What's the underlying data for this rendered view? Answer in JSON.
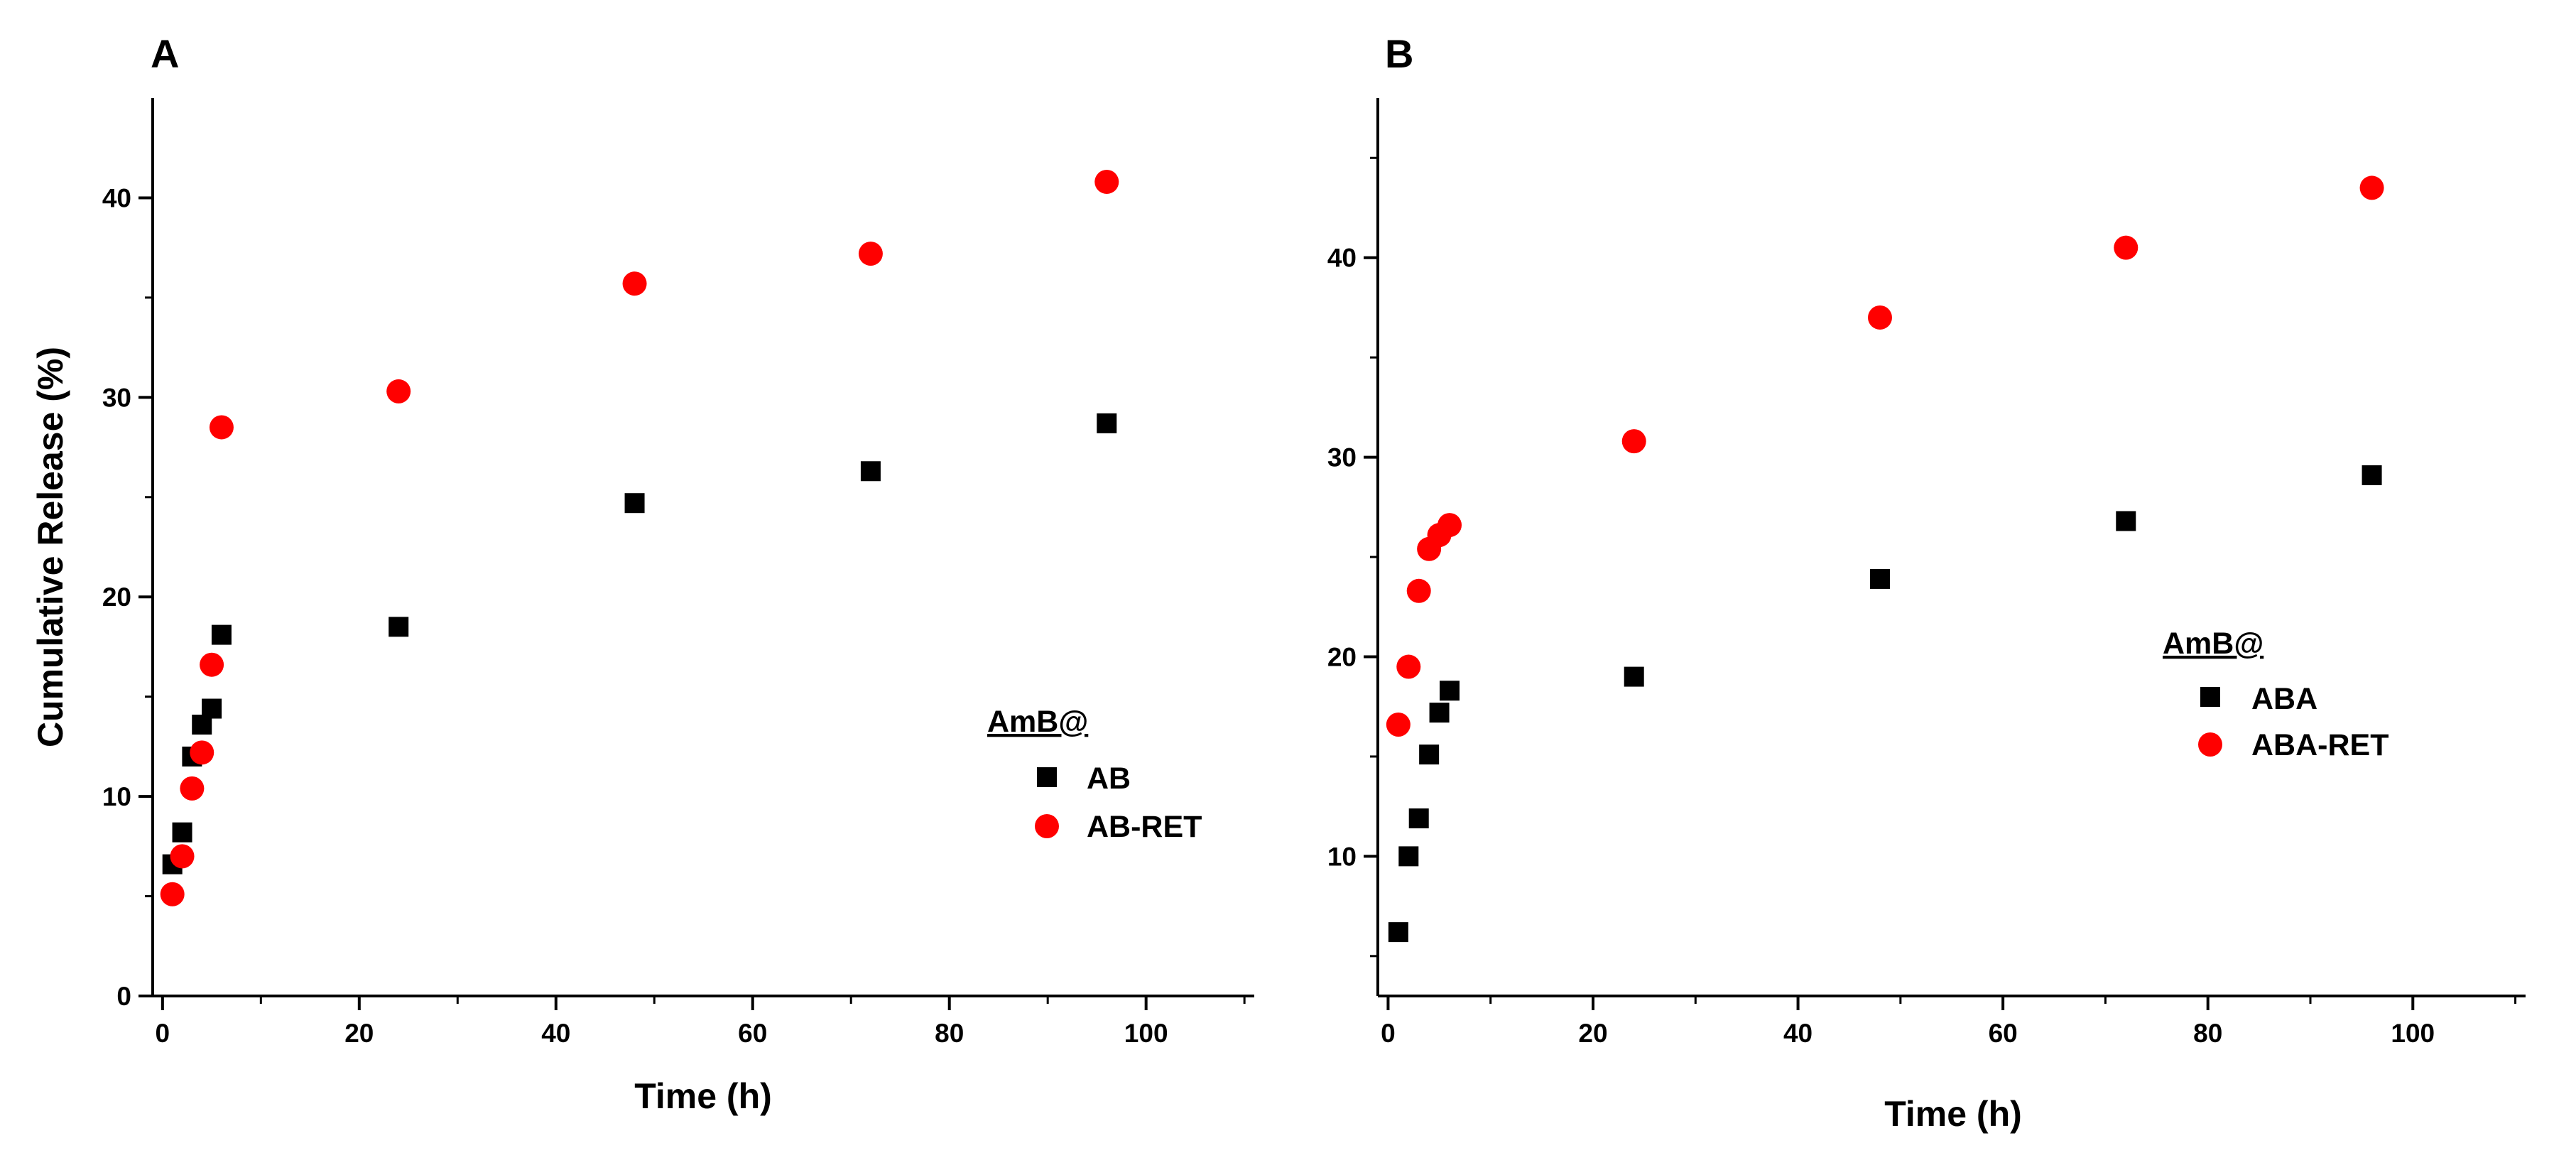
{
  "chart_data": [
    {
      "type": "scatter",
      "panel": "A",
      "xlabel": "Time (h)",
      "ylabel": "Cumulative Release (%)",
      "xlim": [
        -1,
        111
      ],
      "ylim": [
        0,
        45
      ],
      "xticks": [
        0,
        20,
        40,
        60,
        80,
        100
      ],
      "yticks": [
        0,
        10,
        20,
        30,
        40
      ],
      "legend_title": "AmB@",
      "legend_position": "center-right",
      "series": [
        {
          "name": "AB",
          "marker": "square",
          "color": "#000000",
          "x": [
            1,
            2,
            3,
            4,
            5,
            6,
            24,
            48,
            72,
            96
          ],
          "y": [
            6.6,
            8.2,
            12.0,
            13.6,
            14.4,
            18.1,
            18.5,
            24.7,
            26.3,
            28.7
          ]
        },
        {
          "name": "AB-RET",
          "marker": "circle",
          "color": "#ff0000",
          "x": [
            1,
            2,
            3,
            4,
            5,
            6,
            24,
            48,
            72,
            96
          ],
          "y": [
            5.1,
            7.0,
            10.4,
            12.2,
            16.6,
            28.5,
            30.3,
            35.7,
            37.2,
            40.8
          ]
        }
      ]
    },
    {
      "type": "scatter",
      "panel": "B",
      "xlabel": "Time (h)",
      "ylabel": "",
      "xlim": [
        -1,
        111
      ],
      "ylim": [
        3,
        48
      ],
      "xticks": [
        0,
        20,
        40,
        60,
        80,
        100
      ],
      "yticks": [
        10,
        20,
        30,
        40
      ],
      "legend_title": "AmB@",
      "legend_position": "center-right",
      "series": [
        {
          "name": "ABA",
          "marker": "square",
          "color": "#000000",
          "x": [
            1,
            2,
            3,
            4,
            5,
            6,
            24,
            48,
            72,
            96
          ],
          "y": [
            6.2,
            10.0,
            11.9,
            15.1,
            17.2,
            18.3,
            19.0,
            23.9,
            26.8,
            29.1
          ]
        },
        {
          "name": "ABA-RET",
          "marker": "circle",
          "color": "#ff0000",
          "x": [
            1,
            2,
            3,
            4,
            5,
            6,
            24,
            48,
            72,
            96
          ],
          "y": [
            16.6,
            19.5,
            23.3,
            25.4,
            26.1,
            26.6,
            30.8,
            37.0,
            40.5,
            43.5
          ]
        }
      ]
    }
  ]
}
